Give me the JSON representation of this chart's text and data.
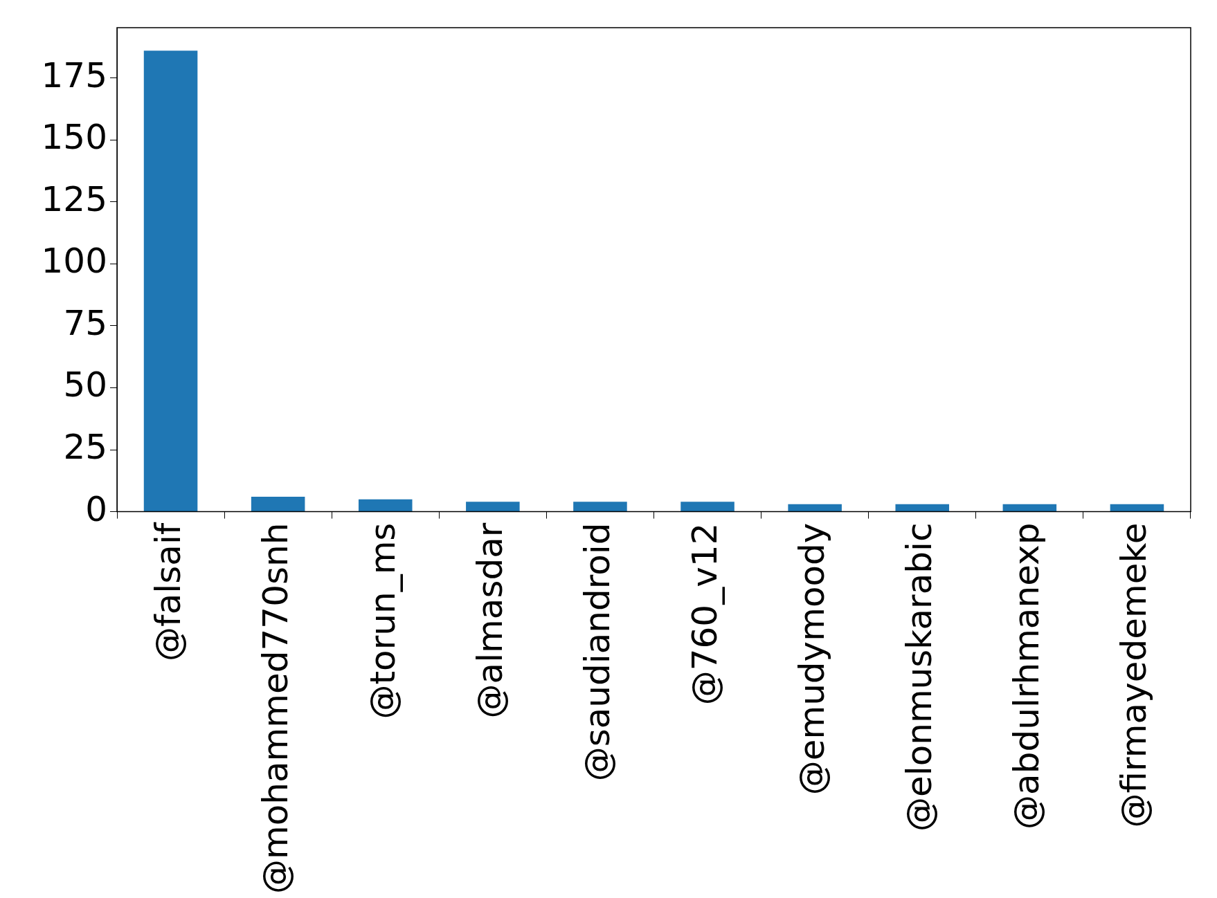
{
  "chart_data": {
    "type": "bar",
    "categories": [
      "@falsaif",
      "@mohammed770snh",
      "@torun_ms",
      "@almasdar",
      "@saudiandroid",
      "@760_v12",
      "@emudymoody",
      "@elonmuskarabic",
      "@abdulrhmanexp",
      "@firmayedemeke"
    ],
    "values": [
      186,
      6,
      5,
      4,
      4,
      4,
      3,
      3,
      3,
      3
    ],
    "color": "#1f77b4",
    "ylim": [
      0,
      195.3
    ],
    "yticks": [
      0,
      25,
      50,
      75,
      100,
      125,
      150,
      175
    ],
    "grid": false,
    "legend": false
  }
}
